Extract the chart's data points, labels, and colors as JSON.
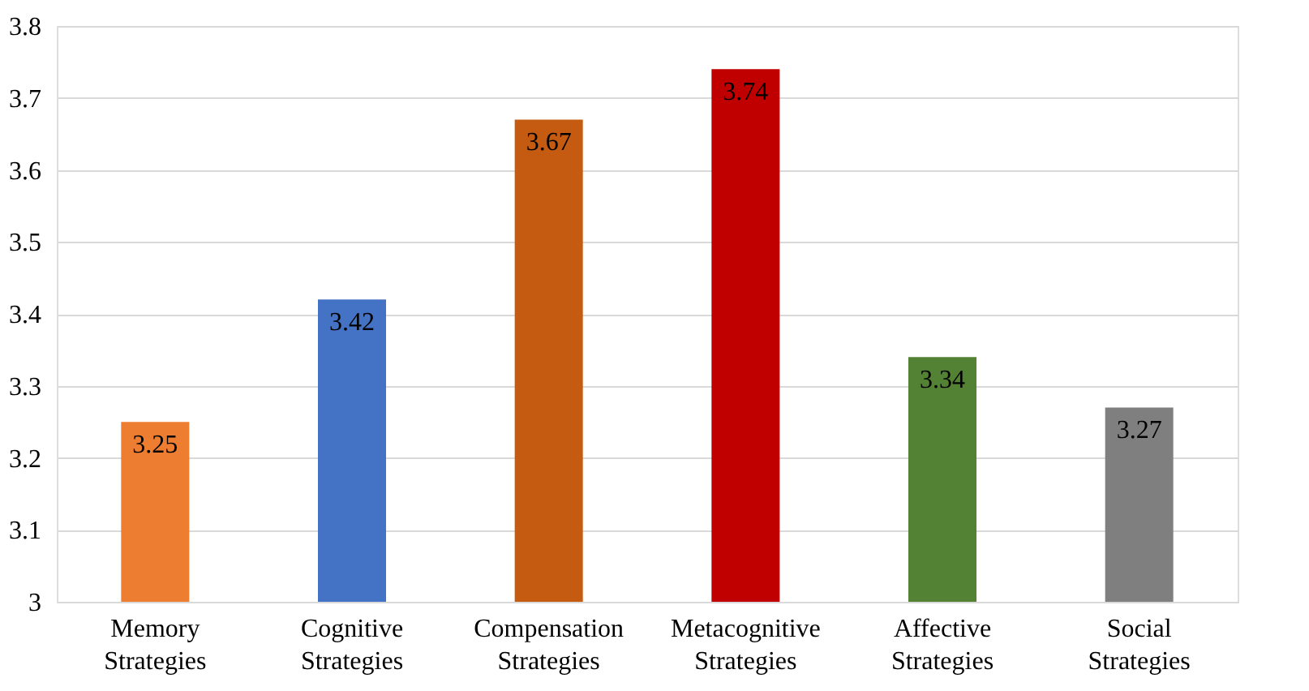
{
  "chart_data": {
    "type": "bar",
    "categories": [
      "Memory Strategies",
      "Cognitive Strategies",
      "Compensation Strategies",
      "Metacognitive Strategies",
      "Affective Strategies",
      "Social Strategies"
    ],
    "values": [
      3.25,
      3.42,
      3.67,
      3.74,
      3.34,
      3.27
    ],
    "colors": [
      "#ed7d31",
      "#4472c4",
      "#c55a11",
      "#c00000",
      "#548235",
      "#7f7f7f"
    ],
    "ylim": [
      3,
      3.8
    ],
    "yticks": [
      3,
      3.1,
      3.2,
      3.3,
      3.4,
      3.5,
      3.6,
      3.7,
      3.8
    ],
    "grid": "y",
    "data_labels": true,
    "legend": false
  }
}
